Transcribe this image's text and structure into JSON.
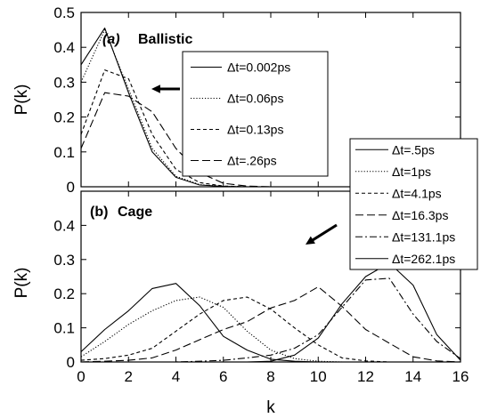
{
  "chart_data": {
    "xlabel": "k",
    "x_ticks": [
      "0",
      "2",
      "4",
      "6",
      "8",
      "10",
      "12",
      "14",
      "16"
    ],
    "xlim": [
      0,
      16
    ],
    "panels": [
      {
        "type": "line",
        "annotation_letter": "(a)",
        "annotation_text": "Ballistic",
        "ylabel": "P(k)",
        "ylim": [
          0,
          0.5
        ],
        "y_ticks": [
          "0",
          "0.1",
          "0.2",
          "0.3",
          "0.4",
          "0.5"
        ],
        "x": [
          0,
          1,
          2,
          3,
          4,
          5,
          6,
          7,
          8,
          9,
          10,
          11,
          12,
          13,
          14,
          15,
          16
        ],
        "legend_position": "top-right",
        "arrow_direction": "left",
        "series": [
          {
            "name": "Δt=0.002ps",
            "style": "solid",
            "values": [
              0.35,
              0.455,
              0.27,
              0.1,
              0.027,
              0.005,
              0.001,
              0,
              0,
              0,
              0,
              0,
              0,
              0,
              0,
              0,
              0
            ]
          },
          {
            "name": "Δt=0.06ps",
            "style": "dotted",
            "values": [
              0.3,
              0.45,
              0.28,
              0.11,
              0.03,
              0.006,
              0.001,
              0,
              0,
              0,
              0,
              0,
              0,
              0,
              0,
              0,
              0
            ]
          },
          {
            "name": "Δt=0.13ps",
            "style": "short-dash",
            "values": [
              0.15,
              0.335,
              0.31,
              0.15,
              0.05,
              0.012,
              0.002,
              0,
              0,
              0,
              0,
              0,
              0,
              0,
              0,
              0,
              0
            ]
          },
          {
            "name": "Δt=.26ps",
            "style": "long-dash",
            "values": [
              0.11,
              0.27,
              0.26,
              0.215,
              0.11,
              0.04,
              0.01,
              0.002,
              0,
              0,
              0,
              0,
              0,
              0,
              0,
              0,
              0
            ]
          }
        ]
      },
      {
        "type": "line",
        "annotation_letter": "(b)",
        "annotation_text": "Cage",
        "ylabel": "P(k)",
        "ylim": [
          0,
          0.5
        ],
        "y_ticks": [
          "0",
          "0.1",
          "0.2",
          "0.3",
          "0.4"
        ],
        "x": [
          0,
          1,
          2,
          3,
          4,
          5,
          6,
          7,
          8,
          9,
          10,
          11,
          12,
          13,
          14,
          15,
          16
        ],
        "legend_position": "top-right",
        "arrow_direction": "down-left",
        "series": [
          {
            "name": "Δt=.5ps",
            "style": "solid",
            "values": [
              0.03,
              0.095,
              0.15,
              0.215,
              0.23,
              0.165,
              0.075,
              0.035,
              0.008,
              0.002,
              0,
              0,
              0,
              0,
              0,
              0,
              0
            ]
          },
          {
            "name": "Δt=1ps",
            "style": "dotted",
            "values": [
              0.015,
              0.06,
              0.11,
              0.15,
              0.18,
              0.19,
              0.16,
              0.09,
              0.035,
              0.01,
              0.002,
              0,
              0,
              0,
              0,
              0,
              0
            ]
          },
          {
            "name": "Δt=4.1ps",
            "style": "short-dash",
            "values": [
              0.005,
              0.01,
              0.02,
              0.04,
              0.09,
              0.14,
              0.18,
              0.19,
              0.155,
              0.1,
              0.05,
              0.012,
              0.003,
              0,
              0,
              0,
              0
            ]
          },
          {
            "name": "Δt=16.3ps",
            "style": "long-dash",
            "values": [
              0,
              0.002,
              0.005,
              0.012,
              0.035,
              0.065,
              0.095,
              0.118,
              0.158,
              0.18,
              0.22,
              0.163,
              0.095,
              0.055,
              0.015,
              0.003,
              0
            ]
          },
          {
            "name": "Δt=131.1ps",
            "style": "dash-dot",
            "values": [
              0,
              0,
              0,
              0,
              0,
              0.002,
              0.005,
              0.012,
              0.02,
              0.04,
              0.08,
              0.16,
              0.24,
              0.245,
              0.14,
              0.06,
              0.01
            ]
          },
          {
            "name": "Δt=262.1ps",
            "style": "solid",
            "values": [
              0,
              0,
              0,
              0,
              0,
              0,
              0,
              0,
              0.002,
              0.02,
              0.07,
              0.17,
              0.25,
              0.29,
              0.225,
              0.08,
              0.005
            ]
          }
        ]
      }
    ]
  }
}
